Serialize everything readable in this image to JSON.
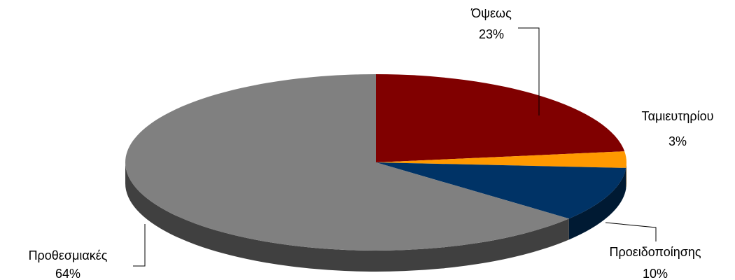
{
  "chart_data": {
    "type": "pie",
    "categories": [
      "Όψεως",
      "Ταμιευτηρίου",
      "Προειδοποίησης",
      "Προθεσμιακές"
    ],
    "values": [
      23,
      3,
      10,
      64
    ],
    "value_labels": [
      "23%",
      "3%",
      "10%",
      "64%"
    ],
    "colors": [
      "#800000",
      "#ff9900",
      "#003366",
      "#808080"
    ]
  }
}
